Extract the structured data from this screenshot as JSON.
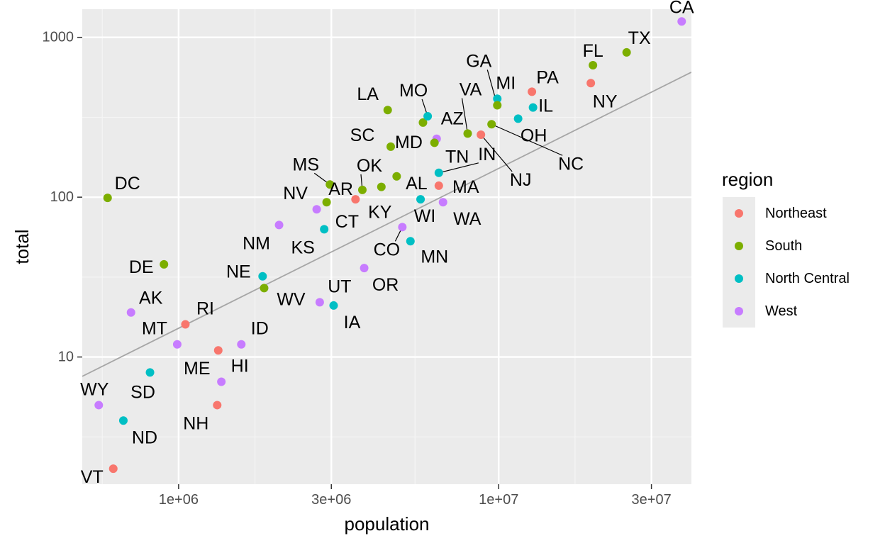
{
  "chart_data": {
    "type": "scatter",
    "title": "",
    "xlabel": "population",
    "ylabel": "total",
    "x_scale": "log10",
    "y_scale": "log10",
    "xlim": [
      500000,
      40000000
    ],
    "ylim": [
      1.6,
      1500
    ],
    "x_ticks": [
      {
        "value": 1000000,
        "label": "1e+06"
      },
      {
        "value": 3000000,
        "label": "3e+06"
      },
      {
        "value": 10000000,
        "label": "1e+07"
      },
      {
        "value": 30000000,
        "label": "3e+07"
      }
    ],
    "y_ticks": [
      {
        "value": 10,
        "label": "10"
      },
      {
        "value": 100,
        "label": "100"
      },
      {
        "value": 1000,
        "label": "1000"
      }
    ],
    "grid": true,
    "reference_line": {
      "intercept_log10": -4.82,
      "slope": 1,
      "color": "#a6a6a6"
    },
    "legend": {
      "title": "region",
      "position": "right",
      "entries": [
        {
          "name": "Northeast",
          "color": "#F8766D"
        },
        {
          "name": "South",
          "color": "#7CAE00"
        },
        {
          "name": "North Central",
          "color": "#00BFC4"
        },
        {
          "name": "West",
          "color": "#C77CFF"
        }
      ]
    },
    "points": [
      {
        "label": "CA",
        "region": "West",
        "population": 37300000,
        "total": 1257,
        "lx": 0,
        "ly": -20
      },
      {
        "label": "TX",
        "region": "South",
        "population": 25100000,
        "total": 805,
        "lx": 18,
        "ly": -20
      },
      {
        "label": "FL",
        "region": "South",
        "population": 19700000,
        "total": 669,
        "lx": 0,
        "ly": -20
      },
      {
        "label": "NY",
        "region": "Northeast",
        "population": 19400000,
        "total": 517,
        "lx": 20,
        "ly": 26
      },
      {
        "label": "PA",
        "region": "Northeast",
        "population": 12700000,
        "total": 457,
        "lx": 22,
        "ly": -20
      },
      {
        "label": "MI",
        "region": "North Central",
        "population": 9900000,
        "total": 413,
        "lx": 12,
        "ly": -22
      },
      {
        "label": "GA",
        "region": "South",
        "population": 9900000,
        "total": 376,
        "lx": -26,
        "ly": -62,
        "leader": true
      },
      {
        "label": "IL",
        "region": "North Central",
        "population": 12800000,
        "total": 364,
        "lx": 18,
        "ly": -2
      },
      {
        "label": "OH",
        "region": "North Central",
        "population": 11500000,
        "total": 310,
        "lx": 22,
        "ly": 24
      },
      {
        "label": "VA",
        "region": "South",
        "population": 8000000,
        "total": 250,
        "lx": 4,
        "ly": -62,
        "leader": true
      },
      {
        "label": "NC",
        "region": "South",
        "population": 9500000,
        "total": 286,
        "lx": 112,
        "ly": 56,
        "leader": true
      },
      {
        "label": "NJ",
        "region": "Northeast",
        "population": 8800000,
        "total": 246,
        "lx": 56,
        "ly": 64,
        "leader": true
      },
      {
        "label": "AZ",
        "region": "West",
        "population": 6400000,
        "total": 232,
        "lx": 22,
        "ly": -28
      },
      {
        "label": "MD",
        "region": "South",
        "population": 5800000,
        "total": 293,
        "lx": -20,
        "ly": 28
      },
      {
        "label": "MO",
        "region": "North Central",
        "population": 6000000,
        "total": 321,
        "lx": -20,
        "ly": -36,
        "leader": true
      },
      {
        "label": "TN",
        "region": "South",
        "population": 6300000,
        "total": 219,
        "lx": 32,
        "ly": 20
      },
      {
        "label": "IN",
        "region": "North Central",
        "population": 6500000,
        "total": 142,
        "lx": 68,
        "ly": -26,
        "leader": true
      },
      {
        "label": "LA",
        "region": "South",
        "population": 4500000,
        "total": 351,
        "lx": -28,
        "ly": -22
      },
      {
        "label": "SC",
        "region": "South",
        "population": 4600000,
        "total": 207,
        "lx": -40,
        "ly": -16
      },
      {
        "label": "MA",
        "region": "Northeast",
        "population": 6500000,
        "total": 118,
        "lx": 38,
        "ly": 2
      },
      {
        "label": "AL",
        "region": "South",
        "population": 4800000,
        "total": 135,
        "lx": 28,
        "ly": 10
      },
      {
        "label": "KY",
        "region": "South",
        "population": 4300000,
        "total": 116,
        "lx": -2,
        "ly": 36
      },
      {
        "label": "WA",
        "region": "West",
        "population": 6700000,
        "total": 93,
        "lx": 34,
        "ly": 24
      },
      {
        "label": "WI",
        "region": "North Central",
        "population": 5700000,
        "total": 97,
        "lx": 6,
        "ly": 24
      },
      {
        "label": "CO",
        "region": "West",
        "population": 5000000,
        "total": 65,
        "lx": -22,
        "ly": 32,
        "leader": true
      },
      {
        "label": "MN",
        "region": "North Central",
        "population": 5300000,
        "total": 53,
        "lx": 34,
        "ly": 22
      },
      {
        "label": "OR",
        "region": "West",
        "population": 3800000,
        "total": 36,
        "lx": 30,
        "ly": 24
      },
      {
        "label": "OK",
        "region": "South",
        "population": 3750000,
        "total": 111,
        "lx": 10,
        "ly": -34,
        "leader": true
      },
      {
        "label": "AR",
        "region": "South",
        "population": 2900000,
        "total": 93,
        "lx": 20,
        "ly": -18
      },
      {
        "label": "MS",
        "region": "South",
        "population": 2970000,
        "total": 120,
        "lx": -34,
        "ly": -28,
        "leader": true
      },
      {
        "label": "CT",
        "region": "Northeast",
        "population": 3570000,
        "total": 97,
        "lx": -12,
        "ly": 32
      },
      {
        "label": "NV",
        "region": "West",
        "population": 2700000,
        "total": 84,
        "lx": -30,
        "ly": -22
      },
      {
        "label": "KS",
        "region": "North Central",
        "population": 2850000,
        "total": 63,
        "lx": -30,
        "ly": 26
      },
      {
        "label": "UT",
        "region": "West",
        "population": 2760000,
        "total": 22,
        "lx": 28,
        "ly": -22
      },
      {
        "label": "IA",
        "region": "North Central",
        "population": 3050000,
        "total": 21,
        "lx": 26,
        "ly": 24
      },
      {
        "label": "NM",
        "region": "West",
        "population": 2060000,
        "total": 67,
        "lx": -32,
        "ly": 26
      },
      {
        "label": "WV",
        "region": "South",
        "population": 1850000,
        "total": 27,
        "lx": 38,
        "ly": 16
      },
      {
        "label": "NE",
        "region": "North Central",
        "population": 1830000,
        "total": 32,
        "lx": -34,
        "ly": -6
      },
      {
        "label": "ID",
        "region": "West",
        "population": 1570000,
        "total": 12,
        "lx": 26,
        "ly": -22
      },
      {
        "label": "ME",
        "region": "Northeast",
        "population": 1330000,
        "total": 11,
        "lx": -30,
        "ly": 26
      },
      {
        "label": "HI",
        "region": "West",
        "population": 1360000,
        "total": 7,
        "lx": 26,
        "ly": -22
      },
      {
        "label": "NH",
        "region": "Northeast",
        "population": 1320000,
        "total": 5,
        "lx": -30,
        "ly": 26
      },
      {
        "label": "RI",
        "region": "Northeast",
        "population": 1050000,
        "total": 16,
        "lx": 28,
        "ly": -22
      },
      {
        "label": "MT",
        "region": "West",
        "population": 990000,
        "total": 12,
        "lx": -32,
        "ly": -22
      },
      {
        "label": "DE",
        "region": "South",
        "population": 900000,
        "total": 38,
        "lx": -32,
        "ly": 4
      },
      {
        "label": "SD",
        "region": "North Central",
        "population": 814000,
        "total": 8,
        "lx": -10,
        "ly": 28
      },
      {
        "label": "AK",
        "region": "West",
        "population": 710000,
        "total": 19,
        "lx": 28,
        "ly": -20
      },
      {
        "label": "ND",
        "region": "North Central",
        "population": 672000,
        "total": 4,
        "lx": 30,
        "ly": 24
      },
      {
        "label": "VT",
        "region": "Northeast",
        "population": 625000,
        "total": 2,
        "lx": -30,
        "ly": 12
      },
      {
        "label": "DC",
        "region": "South",
        "population": 600000,
        "total": 99,
        "lx": 28,
        "ly": -20
      },
      {
        "label": "WY",
        "region": "West",
        "population": 563000,
        "total": 5,
        "lx": -6,
        "ly": -22
      }
    ]
  }
}
